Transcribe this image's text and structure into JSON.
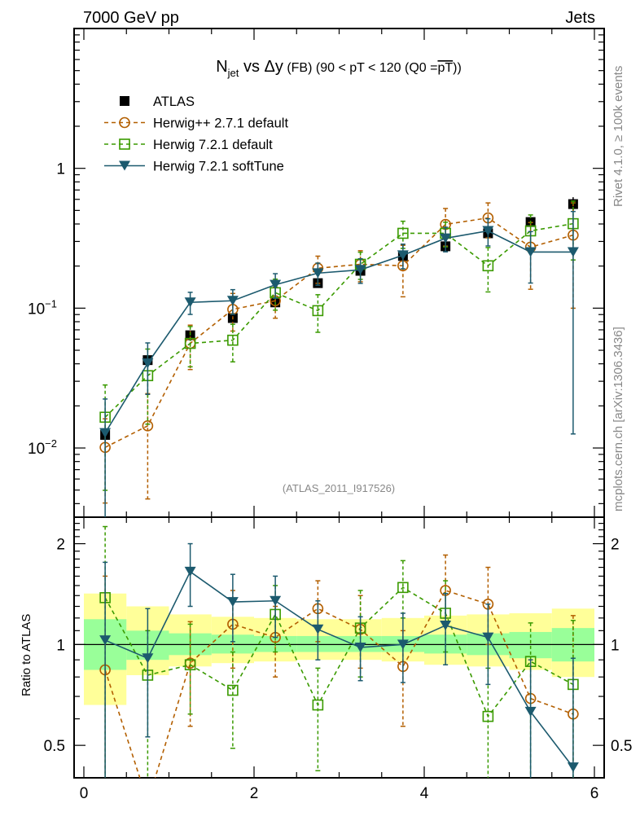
{
  "header": {
    "left": "7000 GeV pp",
    "right": "Jets"
  },
  "side_text": {
    "top": "Rivet 4.1.0, ≥ 100k events",
    "bottom": "mcplots.cern.ch [arXiv:1306.3436]"
  },
  "watermark": "(ATLAS_2011_I917526)",
  "chart_data": [
    {
      "type": "line",
      "panel": "main",
      "title": {
        "main_N": "N",
        "main_sub": "jet",
        "main_rest": " vs Δy",
        "small": " (FB) (90 < pT < 120 (Q0 =",
        "overline": "pT",
        "tail": "))"
      },
      "xlabel": "",
      "ylabel": "",
      "yscale": "log",
      "xlim": [
        0,
        6
      ],
      "ylim": [
        0.0032,
        10
      ],
      "x_ticks": [
        0,
        2,
        4,
        6
      ],
      "y_tick_labels": [
        {
          "value": 1,
          "base": "1",
          "exp": ""
        },
        {
          "value": 0.1,
          "base": "10",
          "exp": "−1"
        },
        {
          "value": 0.01,
          "base": "10",
          "exp": "−2"
        }
      ],
      "legend_position": "top-left",
      "x": [
        0.25,
        0.75,
        1.25,
        1.75,
        2.25,
        2.75,
        3.25,
        3.75,
        4.25,
        4.75,
        5.25,
        5.75
      ],
      "series": [
        {
          "name": "ATLAS",
          "color": "#000000",
          "marker": "filled-square",
          "line": "none",
          "values": [
            0.0124,
            0.0425,
            0.064,
            0.085,
            0.11,
            0.151,
            0.185,
            0.236,
            0.277,
            0.343,
            0.413,
            0.555
          ],
          "err_rel": [
            0.1,
            0.08,
            0.07,
            0.06,
            0.05,
            0.05,
            0.05,
            0.05,
            0.06,
            0.07,
            0.08,
            0.12
          ]
        },
        {
          "name": "Herwig++ 2.7.1 default",
          "color": "#b35f00",
          "marker": "open-circle",
          "line": "dashed",
          "values": [
            0.0101,
            0.0144,
            0.056,
            0.098,
            0.113,
            0.193,
            0.206,
            0.201,
            0.397,
            0.442,
            0.273,
            0.333
          ],
          "err_rel": [
            0.6,
            0.7,
            0.35,
            0.3,
            0.25,
            0.22,
            0.25,
            0.4,
            0.3,
            0.28,
            0.5,
            0.7
          ]
        },
        {
          "name": "Herwig 7.2.1 default",
          "color": "#3a9a00",
          "marker": "open-square",
          "line": "dashed",
          "values": [
            0.0166,
            0.0329,
            0.056,
            0.059,
            0.129,
            0.096,
            0.206,
            0.343,
            0.343,
            0.201,
            0.357,
            0.402
          ],
          "err_rel": [
            0.7,
            0.55,
            0.32,
            0.3,
            0.25,
            0.3,
            0.22,
            0.22,
            0.2,
            0.35,
            0.3,
            0.45
          ]
        },
        {
          "name": "Herwig 7.2.1 softTune",
          "color": "#1c5a6e",
          "marker": "filled-triangle-down",
          "line": "solid",
          "values": [
            0.0128,
            0.0403,
            0.11,
            0.113,
            0.147,
            0.178,
            0.188,
            0.239,
            0.316,
            0.357,
            0.252,
            0.252
          ],
          "err_rel": [
            0.75,
            0.4,
            0.18,
            0.2,
            0.2,
            0.18,
            0.2,
            0.2,
            0.2,
            0.22,
            0.4,
            0.95
          ]
        }
      ]
    },
    {
      "type": "line",
      "panel": "ratio",
      "ylabel": "Ratio to ATLAS",
      "yscale": "log",
      "ylim": [
        0.4,
        2.4
      ],
      "y_tick_labels": [
        {
          "value": 2,
          "label": "2"
        },
        {
          "value": 1,
          "label": "1"
        },
        {
          "value": 0.5,
          "label": "0.5"
        }
      ],
      "x_ticks": [
        0,
        2,
        4,
        6
      ],
      "x_tick_labels": [
        "0",
        "2",
        "4",
        "6"
      ],
      "band_edges": [
        0,
        0.5,
        1,
        1.5,
        2,
        2.5,
        3,
        3.5,
        4,
        4.5,
        5,
        5.5,
        6
      ],
      "band_green": [
        [
          0.84,
          1.19
        ],
        [
          0.9,
          1.1
        ],
        [
          0.93,
          1.08
        ],
        [
          0.94,
          1.07
        ],
        [
          0.95,
          1.06
        ],
        [
          0.95,
          1.06
        ],
        [
          0.95,
          1.06
        ],
        [
          0.95,
          1.06
        ],
        [
          0.94,
          1.07
        ],
        [
          0.93,
          1.08
        ],
        [
          0.91,
          1.09
        ],
        [
          0.89,
          1.12
        ]
      ],
      "band_yellow": [
        [
          0.66,
          1.42
        ],
        [
          0.81,
          1.3
        ],
        [
          0.86,
          1.23
        ],
        [
          0.88,
          1.21
        ],
        [
          0.89,
          1.2
        ],
        [
          0.9,
          1.19
        ],
        [
          0.9,
          1.19
        ],
        [
          0.89,
          1.2
        ],
        [
          0.87,
          1.22
        ],
        [
          0.86,
          1.23
        ],
        [
          0.84,
          1.24
        ],
        [
          0.8,
          1.28
        ]
      ],
      "x": [
        0.25,
        0.75,
        1.25,
        1.75,
        2.25,
        2.75,
        3.25,
        3.75,
        4.25,
        4.75,
        5.25,
        5.75
      ],
      "series": [
        {
          "name": "Herwig++ 2.7.1 default",
          "color": "#b35f00",
          "marker": "open-circle",
          "line": "dashed",
          "values": [
            0.84,
            0.33,
            0.88,
            1.15,
            1.05,
            1.28,
            1.11,
            0.86,
            1.45,
            1.32,
            0.69,
            0.62
          ],
          "err": [
            [
              0.3,
              1.6
            ],
            null,
            [
              0.57,
              1.17
            ],
            [
              0.85,
              1.45
            ],
            [
              0.8,
              1.3
            ],
            [
              1.02,
              1.55
            ],
            [
              0.85,
              1.4
            ],
            [
              0.57,
              1.1
            ],
            [
              1.2,
              1.85
            ],
            [
              1.0,
              1.7
            ],
            null,
            [
              0.35,
              1.22
            ]
          ]
        },
        {
          "name": "Herwig 7.2.1 default",
          "color": "#3a9a00",
          "marker": "open-square",
          "line": "dashed",
          "values": [
            1.38,
            0.81,
            0.87,
            0.73,
            1.23,
            0.66,
            1.12,
            1.48,
            1.24,
            0.61,
            0.89,
            0.76
          ],
          "err": [
            [
              0.33,
              2.25
            ],
            [
              0.4,
              1.1
            ],
            [
              0.62,
              1.15
            ],
            [
              0.49,
              0.95
            ],
            [
              0.95,
              1.5
            ],
            [
              0.42,
              0.85
            ],
            [
              0.8,
              1.45
            ],
            [
              1.2,
              1.78
            ],
            [
              0.95,
              1.55
            ],
            [
              0.35,
              0.85
            ],
            [
              0.35,
              1.16
            ],
            [
              0.35,
              1.18
            ]
          ]
        },
        {
          "name": "Herwig 7.2.1 softTune",
          "color": "#1c5a6e",
          "marker": "filled-triangle-down",
          "line": "solid",
          "values": [
            1.03,
            0.91,
            1.65,
            1.34,
            1.35,
            1.11,
            0.98,
            1.0,
            1.14,
            1.05,
            0.63,
            0.43
          ],
          "err": [
            [
              0.3,
              1.76
            ],
            [
              0.53,
              1.28
            ],
            [
              1.3,
              2.0
            ],
            [
              1.02,
              1.62
            ],
            [
              1.05,
              1.6
            ],
            [
              0.9,
              1.35
            ],
            [
              0.78,
              1.21
            ],
            [
              0.77,
              1.24
            ],
            [
              0.87,
              1.42
            ],
            [
              0.76,
              1.32
            ],
            [
              0.3,
              0.9
            ],
            [
              0.3,
              0.91
            ]
          ]
        }
      ]
    }
  ]
}
